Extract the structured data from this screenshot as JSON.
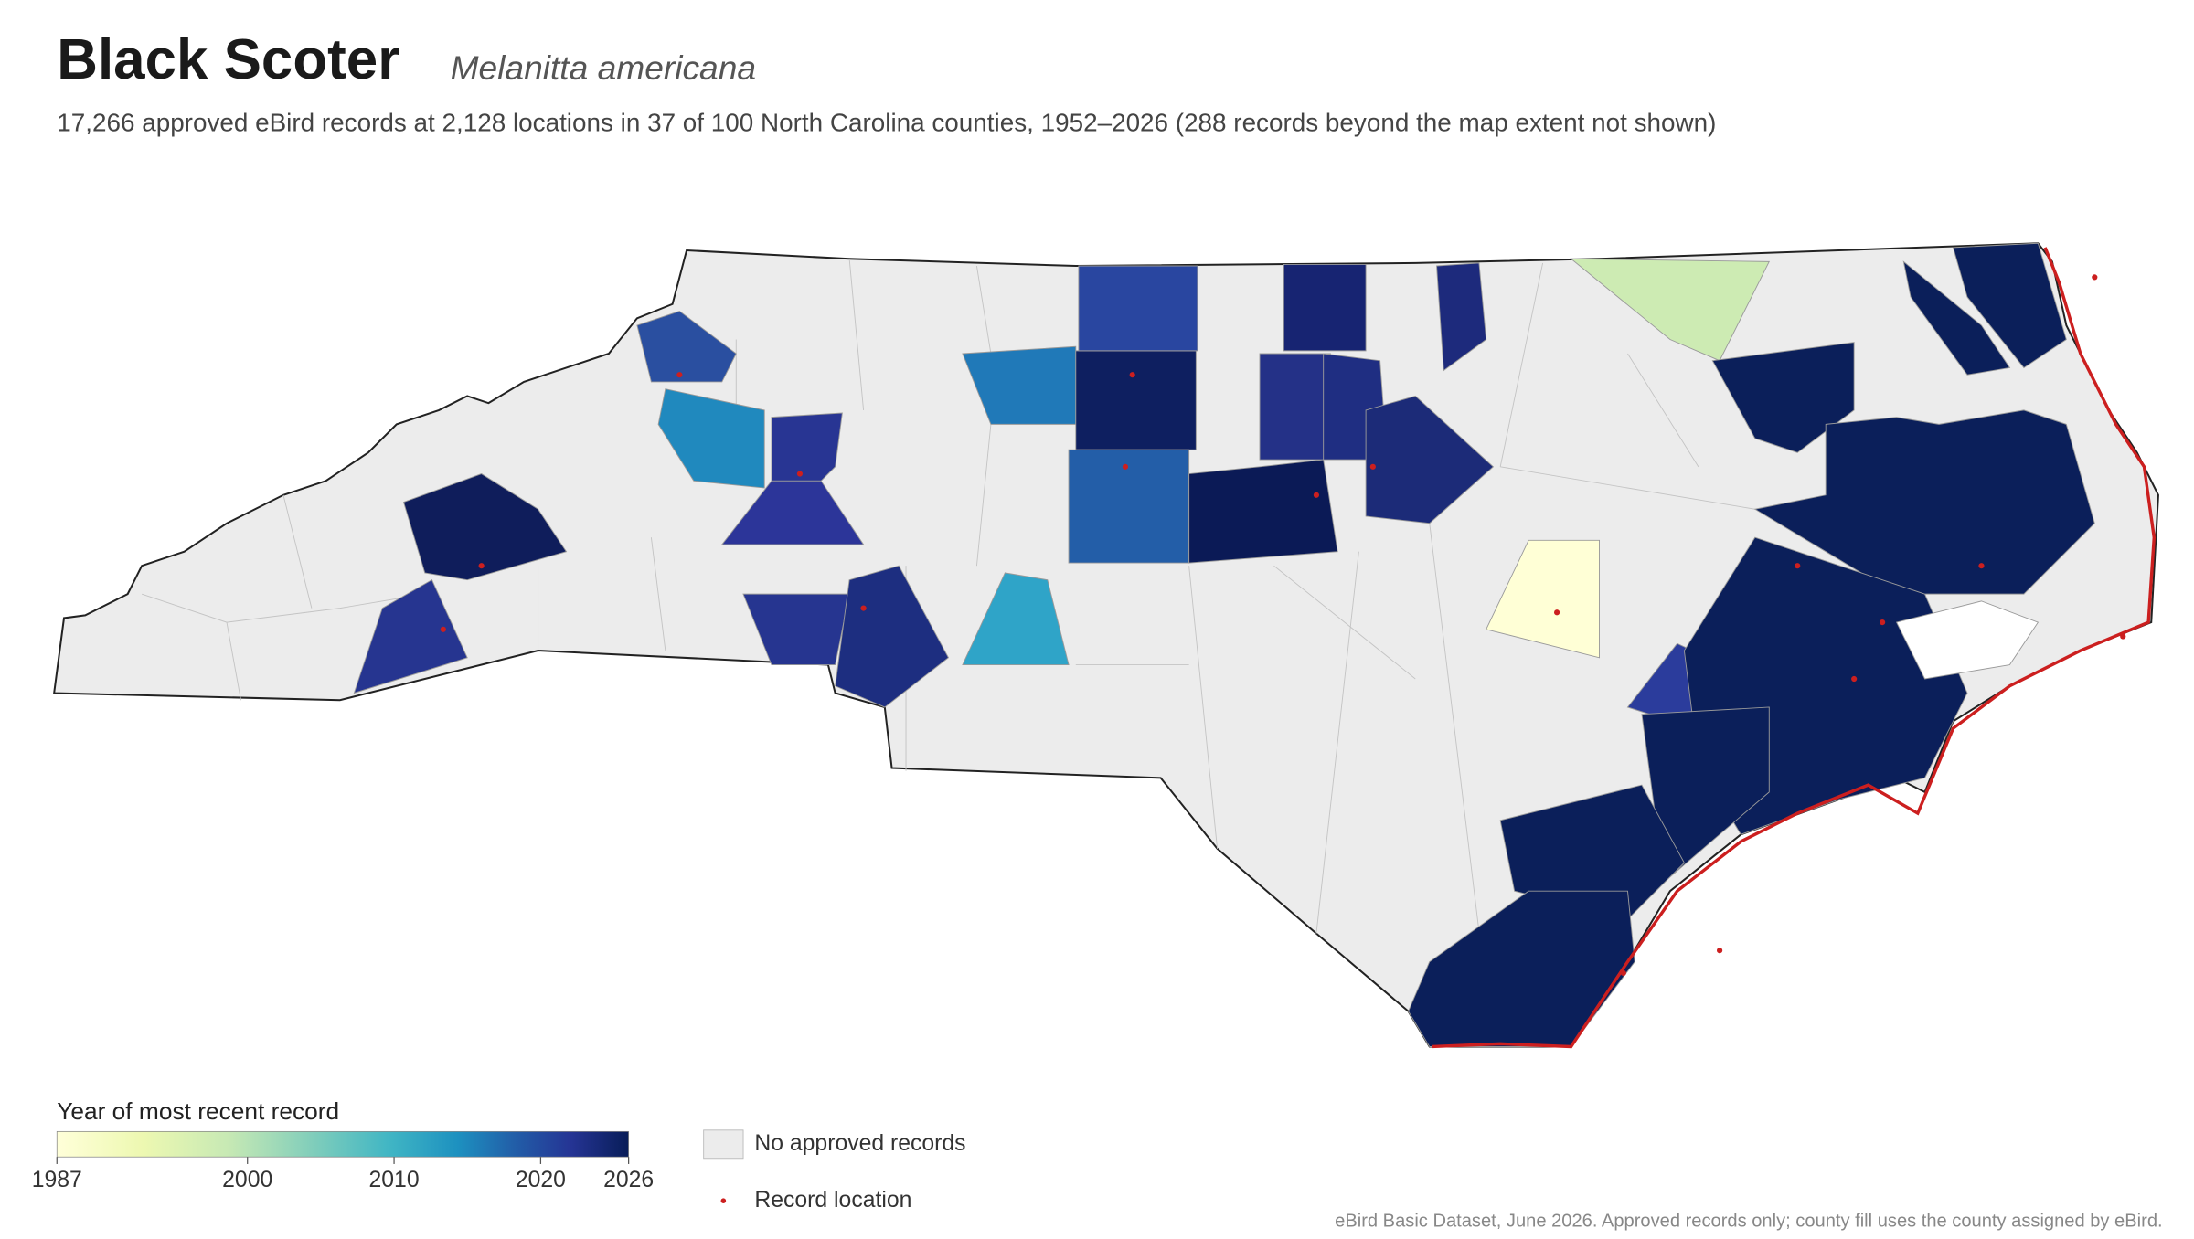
{
  "header": {
    "title": "Black Scoter",
    "subtitle": "Melanitta americana",
    "summary": "17,266 approved eBird records at 2,128 locations in 37 of 100 North Carolina counties, 1952–2026 (288 records beyond the map extent not shown)"
  },
  "legend": {
    "colorbar_title": "Year of most recent record",
    "colorbar_lim": [
      1987,
      2026
    ],
    "colorbar_ticks": [
      1987,
      2000,
      2010,
      2020,
      2026
    ],
    "no_records": "No approved records",
    "record_location": "Record location"
  },
  "footer": "eBird Basic Dataset, June 2026. Approved records only; county fill uses the county assigned by eBird."
}
